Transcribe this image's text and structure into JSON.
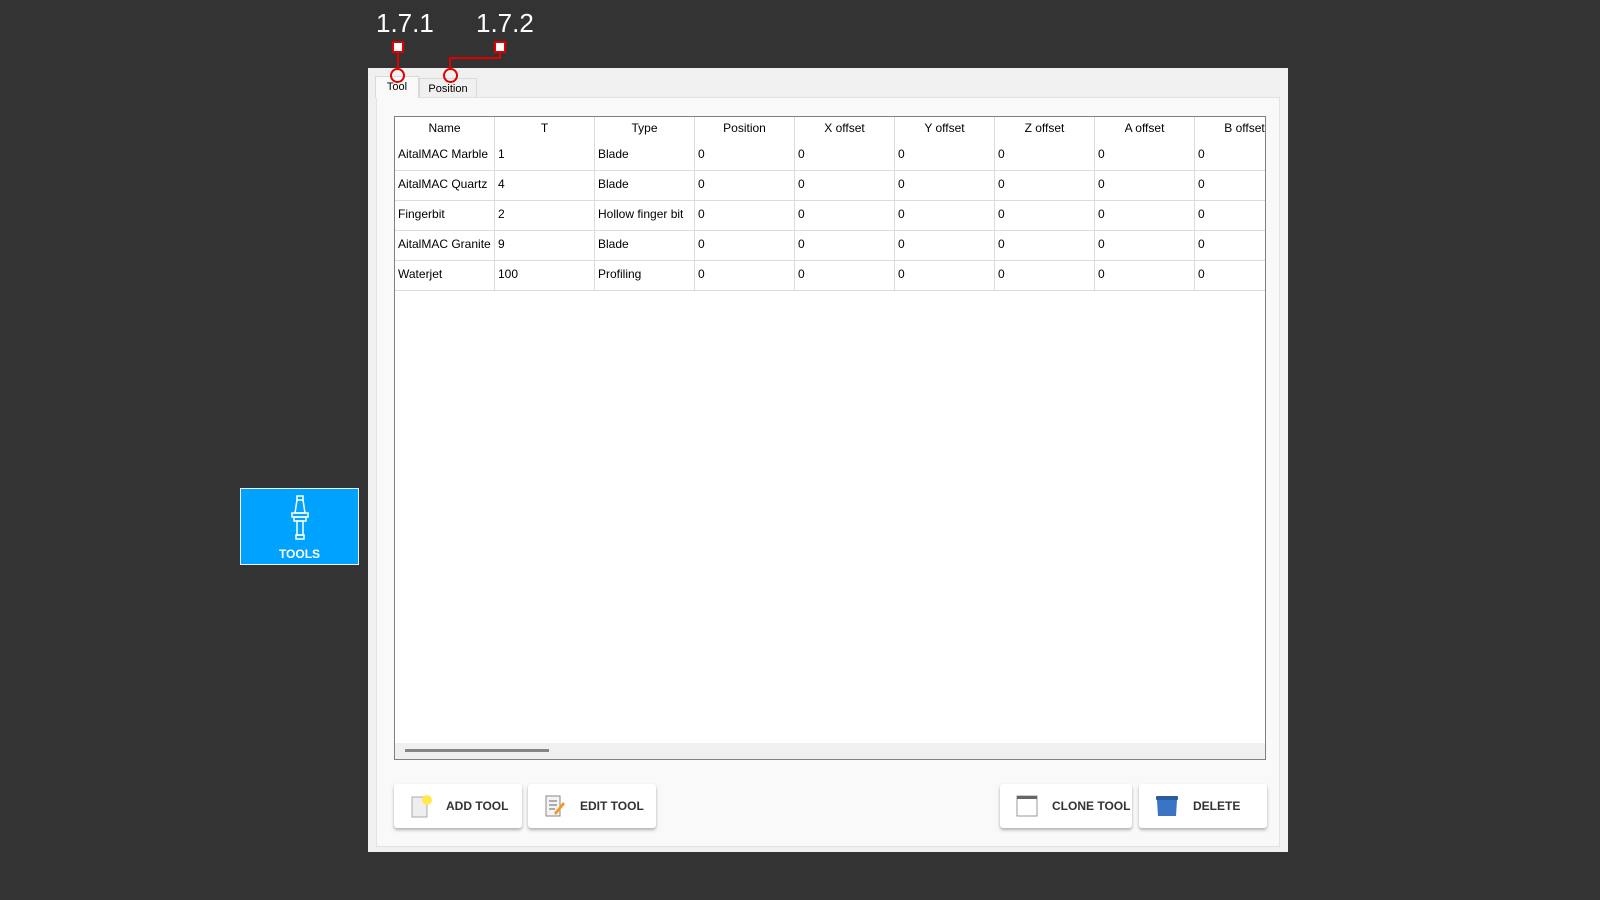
{
  "annotations": [
    {
      "label": "1.7.1"
    },
    {
      "label": "1.7.2"
    }
  ],
  "tabs": [
    {
      "label": "Tool",
      "active": true
    },
    {
      "label": "Position",
      "active": false
    }
  ],
  "sidebar": {
    "tools_label": "TOOLS",
    "accent": "#00a2ff"
  },
  "table": {
    "columns": [
      "Name",
      "T",
      "Type",
      "Position",
      "X offset",
      "Y offset",
      "Z offset",
      "A offset",
      "B offset"
    ],
    "rows": [
      [
        "AitalMAC Marble",
        "1",
        "Blade",
        "0",
        "0",
        "0",
        "0",
        "0",
        "0"
      ],
      [
        "AitalMAC Quartz",
        "4",
        "Blade",
        "0",
        "0",
        "0",
        "0",
        "0",
        "0"
      ],
      [
        "Fingerbit",
        "2",
        "Hollow finger bit",
        "0",
        "0",
        "0",
        "0",
        "0",
        "0"
      ],
      [
        "AitalMAC Granite",
        "9",
        "Blade",
        "0",
        "0",
        "0",
        "0",
        "0",
        "0"
      ],
      [
        "Waterjet",
        "100",
        "Profiling",
        "0",
        "0",
        "0",
        "0",
        "0",
        "0"
      ]
    ]
  },
  "buttons": {
    "add": "ADD TOOL",
    "edit": "EDIT TOOL",
    "clone": "CLONE TOOL",
    "delete": "DELETE"
  }
}
